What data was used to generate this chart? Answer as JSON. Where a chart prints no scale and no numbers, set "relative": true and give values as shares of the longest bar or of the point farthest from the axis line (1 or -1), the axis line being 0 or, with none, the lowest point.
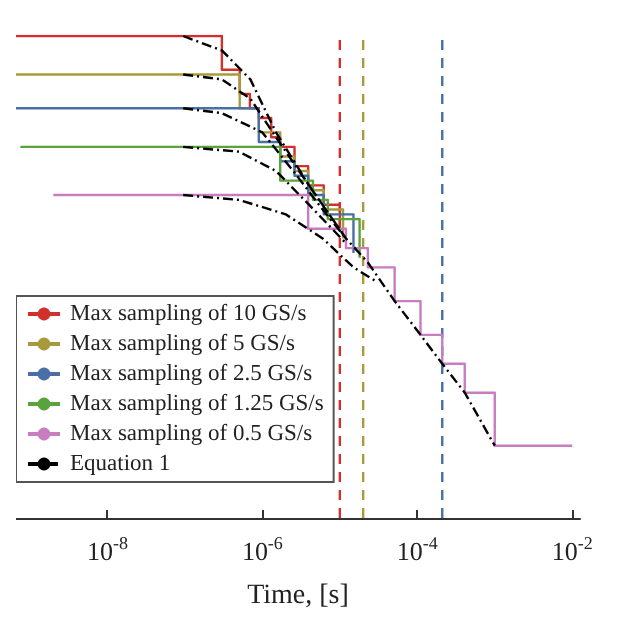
{
  "chart_data": {
    "type": "step",
    "relative": true,
    "xlabel": "Time, [s]",
    "log": "x",
    "xlim": [
      6.6e-10,
      0.0126
    ],
    "xticks": [
      {
        "value": 1e-08,
        "label": "10$^{-8}$"
      },
      {
        "value": 1e-06,
        "label": "10$^{-6}$"
      },
      {
        "value": 0.0001,
        "label": "10$^{-4}$"
      },
      {
        "value": 0.01,
        "label": "10$^{-2}$"
      }
    ],
    "grid": false,
    "legend": "bottom left",
    "marker": "none",
    "line_style": "solid",
    "series": [
      {
        "name": "Max sampling of 10 GS/s",
        "color": "#d0312d",
        "x": [
          6.6e-10,
          3e-07,
          5.1e-07,
          6.9e-07,
          9e-07,
          1.3e-06,
          1.7e-06,
          2.6e-06,
          3.9e-06,
          6.2e-06,
          1e-05
        ],
        "values": [
          1.0,
          0.93,
          0.88,
          0.85,
          0.83,
          0.79,
          0.77,
          0.73,
          0.69,
          0.65,
          0.6
        ]
      },
      {
        "name": "Max sampling of 5 GS/s",
        "color": "#a89a3c",
        "x": [
          6.6e-10,
          5.1e-07,
          9e-07,
          1.7e-06,
          2.6e-06,
          3.9e-06,
          6.2e-06,
          1.1e-05
        ],
        "values": [
          0.92,
          0.85,
          0.8,
          0.75,
          0.72,
          0.68,
          0.64,
          0.58
        ]
      },
      {
        "name": "Max sampling of 2.5 GS/s",
        "color": "#4a6fa5",
        "x": [
          6.6e-10,
          9e-07,
          1.7e-06,
          2.6e-06,
          3.9e-06,
          6.2e-06,
          1.5e-05
        ],
        "values": [
          0.85,
          0.78,
          0.74,
          0.71,
          0.67,
          0.63,
          0.55
        ]
      },
      {
        "name": "Max sampling of 1.25 GS/s",
        "color": "#5aa33c",
        "x": [
          7.5e-10,
          1.7e-06,
          4.5e-06,
          7e-06,
          1.8e-05
        ],
        "values": [
          0.77,
          0.7,
          0.66,
          0.62,
          0.54
        ]
      },
      {
        "name": "Max sampling of 0.5 GS/s",
        "color": "#c77dc0",
        "x": [
          2e-09,
          3.9e-06,
          1.2e-05,
          2.3e-05,
          5.1e-05,
          0.00011,
          0.00021,
          0.00041,
          0.001,
          0.01
        ],
        "values": [
          0.67,
          0.6,
          0.56,
          0.52,
          0.45,
          0.38,
          0.32,
          0.26,
          0.15,
          0.15
        ]
      },
      {
        "name": "Equation 1",
        "type": "line",
        "line_style": "dashed",
        "color": "#000000",
        "x": [
          9.5e-08,
          3e-07,
          7e-07,
          1.5e-06,
          4e-06,
          1.2e-05,
          2.3e-05,
          5.1e-05,
          0.00011,
          0.00021,
          0.00041,
          0.001,
          null,
          9.5e-08,
          3e-07,
          7e-07,
          1.5e-06,
          4e-06,
          1.2e-05,
          null,
          9.5e-08,
          3e-07,
          1e-06,
          2.5e-06,
          6e-06,
          1.2e-05,
          null,
          9.5e-08,
          5e-07,
          1.5e-06,
          4e-06,
          1.2e-05,
          null,
          9.5e-08,
          5e-07,
          2e-06,
          6e-06,
          1.5e-05,
          3e-05
        ],
        "values": [
          1.0,
          0.97,
          0.91,
          0.8,
          0.69,
          0.58,
          0.53,
          0.45,
          0.38,
          0.32,
          0.26,
          0.15,
          null,
          0.92,
          0.91,
          0.87,
          0.79,
          0.69,
          0.58,
          null,
          0.85,
          0.84,
          0.8,
          0.72,
          0.64,
          0.58,
          null,
          0.77,
          0.76,
          0.72,
          0.65,
          0.57,
          null,
          0.67,
          0.66,
          0.63,
          0.58,
          0.52,
          0.49
        ]
      }
    ],
    "ref_lines": [
      {
        "axis": "x",
        "value": 1e-05,
        "color": "#d0312d",
        "line_style": "dashed"
      },
      {
        "axis": "x",
        "value": 2e-05,
        "color": "#a89a3c",
        "line_style": "dashed"
      },
      {
        "axis": "x",
        "value": 0.00021,
        "color": "#4a6fa5",
        "line_style": "dashed"
      }
    ]
  }
}
